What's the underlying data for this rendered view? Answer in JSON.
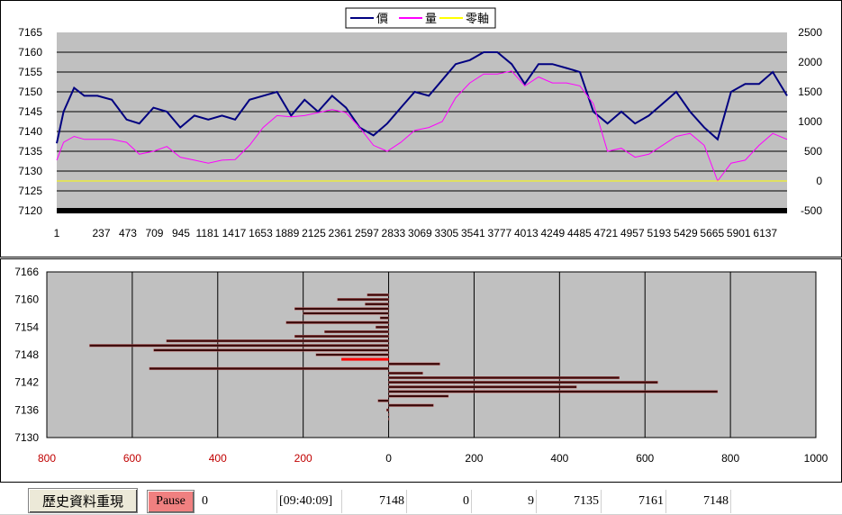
{
  "chart_data": [
    {
      "type": "line",
      "title": "",
      "legend": {
        "placement": "top-center",
        "entries": [
          "價",
          "量",
          "零軸"
        ]
      },
      "x_ticks": [
        "1",
        "237",
        "473",
        "709",
        "945",
        "1181",
        "1417",
        "1653",
        "1889",
        "2125",
        "2361",
        "2597",
        "2833",
        "3069",
        "3305",
        "3541",
        "3777",
        "4013",
        "4249",
        "4485",
        "4721",
        "4957",
        "5193",
        "5429",
        "5665",
        "5901",
        "6137"
      ],
      "x_range": [
        1,
        6260
      ],
      "y_left": {
        "ticks": [
          "7165",
          "7160",
          "7155",
          "7150",
          "7145",
          "7140",
          "7135",
          "7130",
          "7125",
          "7120"
        ],
        "range": [
          7120,
          7165
        ]
      },
      "y_right": {
        "ticks": [
          "2500",
          "2000",
          "1500",
          "1000",
          "500",
          "0",
          "-500"
        ],
        "range": [
          -500,
          2500
        ]
      },
      "grid": true,
      "colors": {
        "price": "#000080",
        "volume": "#ff00ff",
        "zero": "#ffff00",
        "plot_bg": "#c0c0c0"
      },
      "series": [
        {
          "name": "價",
          "axis": "left",
          "x": [
            1,
            60,
            150,
            237,
            350,
            473,
            600,
            709,
            830,
            945,
            1060,
            1181,
            1300,
            1417,
            1530,
            1653,
            1770,
            1889,
            2010,
            2125,
            2240,
            2361,
            2480,
            2597,
            2715,
            2833,
            2950,
            3069,
            3190,
            3305,
            3420,
            3541,
            3660,
            3777,
            3900,
            4013,
            4130,
            4249,
            4370,
            4485,
            4600,
            4721,
            4840,
            4957,
            5075,
            5193,
            5310,
            5429,
            5550,
            5665,
            5780,
            5901,
            6020,
            6137,
            6260
          ],
          "values": [
            7137,
            7145,
            7151,
            7149,
            7149,
            7148,
            7143,
            7142,
            7146,
            7145,
            7141,
            7144,
            7143,
            7144,
            7143,
            7148,
            7149,
            7150,
            7144,
            7148,
            7145,
            7149,
            7146,
            7141,
            7139,
            7142,
            7146,
            7150,
            7149,
            7153,
            7157,
            7158,
            7160,
            7160,
            7157,
            7152,
            7157,
            7157,
            7156,
            7155,
            7145,
            7142,
            7145,
            7142,
            7144,
            7147,
            7150,
            7145,
            7141,
            7138,
            7150,
            7152,
            7152,
            7155,
            7149
          ]
        },
        {
          "name": "量",
          "axis": "right",
          "x": [
            1,
            60,
            150,
            237,
            350,
            473,
            600,
            709,
            830,
            945,
            1060,
            1181,
            1300,
            1417,
            1530,
            1653,
            1770,
            1889,
            2010,
            2125,
            2240,
            2361,
            2480,
            2597,
            2715,
            2833,
            2950,
            3069,
            3190,
            3305,
            3420,
            3541,
            3660,
            3777,
            3900,
            4013,
            4130,
            4249,
            4370,
            4485,
            4600,
            4721,
            4840,
            4957,
            5075,
            5193,
            5310,
            5429,
            5550,
            5665,
            5780,
            5901,
            6020,
            6137,
            6260
          ],
          "values": [
            350,
            650,
            750,
            700,
            700,
            700,
            650,
            450,
            500,
            580,
            400,
            350,
            300,
            350,
            360,
            600,
            900,
            1100,
            1080,
            1100,
            1150,
            1200,
            1150,
            900,
            600,
            500,
            650,
            850,
            900,
            1000,
            1400,
            1650,
            1800,
            1800,
            1850,
            1600,
            1750,
            1650,
            1650,
            1600,
            1300,
            500,
            550,
            400,
            450,
            600,
            750,
            800,
            600,
            0,
            300,
            350,
            600,
            800,
            700
          ]
        },
        {
          "name": "零軸",
          "axis": "right",
          "x": [
            1,
            6260
          ],
          "values": [
            0,
            0
          ]
        }
      ]
    },
    {
      "type": "bar",
      "orientation": "horizontal",
      "title": "",
      "y_ticks": [
        "7166",
        "7160",
        "7154",
        "7148",
        "7142",
        "7136",
        "7130"
      ],
      "y_range": [
        7130,
        7166
      ],
      "x_ticks": [
        "800",
        "600",
        "400",
        "200",
        "0",
        "200",
        "400",
        "600",
        "800",
        "1000"
      ],
      "x_range": [
        -800,
        1000
      ],
      "grid": true,
      "colors": {
        "bar": "#3a0a0a",
        "highlight": "#ff0000",
        "plot_bg": "#c0c0c0",
        "left_tick": "#c00000"
      },
      "categories": [
        7161,
        7160,
        7159,
        7158,
        7157,
        7156,
        7155,
        7154,
        7153,
        7152,
        7151,
        7150,
        7149,
        7148,
        7147,
        7146,
        7145,
        7144,
        7143,
        7142,
        7141,
        7140,
        7139,
        7138,
        7137,
        7136,
        7135,
        7134
      ],
      "values": [
        -50,
        -120,
        -55,
        -220,
        -200,
        -20,
        -240,
        -30,
        -150,
        -220,
        -520,
        -700,
        -550,
        -170,
        -110,
        120,
        -560,
        80,
        540,
        630,
        440,
        770,
        140,
        -25,
        105,
        -5,
        0,
        0
      ],
      "highlight_category": 7147
    }
  ],
  "controls": {
    "history_label": "歷史資料重現",
    "pause_label": "Pause",
    "counter": "0",
    "time": "[09:40:09]",
    "v1": "7148",
    "v2": "0",
    "v3": "9",
    "v4": "7135",
    "v5": "7161",
    "v6": "7148"
  }
}
